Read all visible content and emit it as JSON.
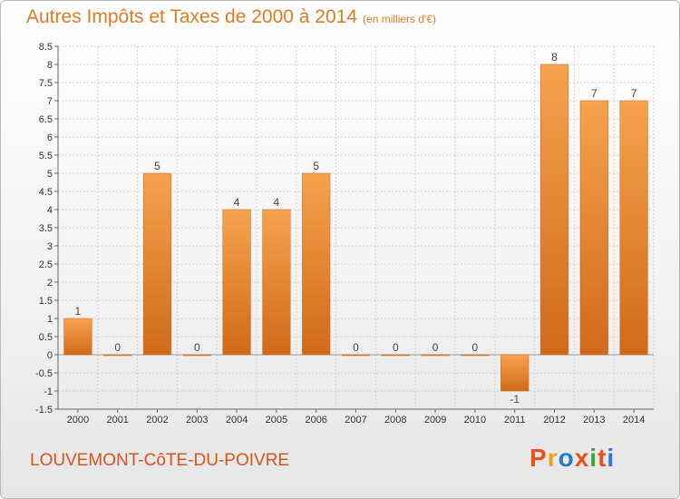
{
  "header": {
    "title": "Autres Impôts et Taxes de 2000 à 2014",
    "subtitle": "(en milliers d'€)"
  },
  "footer": {
    "location": "LOUVEMONT-CôTE-DU-POIVRE",
    "brand": "Proxiti",
    "brand_colors": [
      "#e8501e",
      "#f0a020",
      "#2a7ad0",
      "#e8501e",
      "#3aa63a",
      "#e8501e",
      "#2a7ad0"
    ]
  },
  "chart_data": {
    "type": "bar",
    "categories": [
      "2000",
      "2001",
      "2002",
      "2003",
      "2004",
      "2005",
      "2006",
      "2007",
      "2008",
      "2009",
      "2010",
      "2011",
      "2012",
      "2013",
      "2014"
    ],
    "values": [
      1,
      0,
      5,
      0,
      4,
      4,
      5,
      0,
      0,
      0,
      0,
      -1,
      8,
      7,
      7
    ],
    "data_labels": [
      "1",
      "0",
      "5",
      "0",
      "4",
      "4",
      "5",
      "0",
      "0",
      "0",
      "0",
      "-1",
      "8",
      "7",
      "7"
    ],
    "ylim": [
      -1.5,
      8.5
    ],
    "y_ticks": [
      "-1.5",
      "-1",
      "-0.5",
      "0",
      "0.5",
      "1",
      "1.5",
      "2",
      "2.5",
      "3",
      "3.5",
      "4",
      "4.5",
      "5",
      "5.5",
      "6",
      "6.5",
      "7",
      "7.5",
      "8",
      "8.5"
    ],
    "grid": true,
    "bar_color_top": "#f7a24e",
    "bar_color_bottom": "#d06a1a"
  }
}
